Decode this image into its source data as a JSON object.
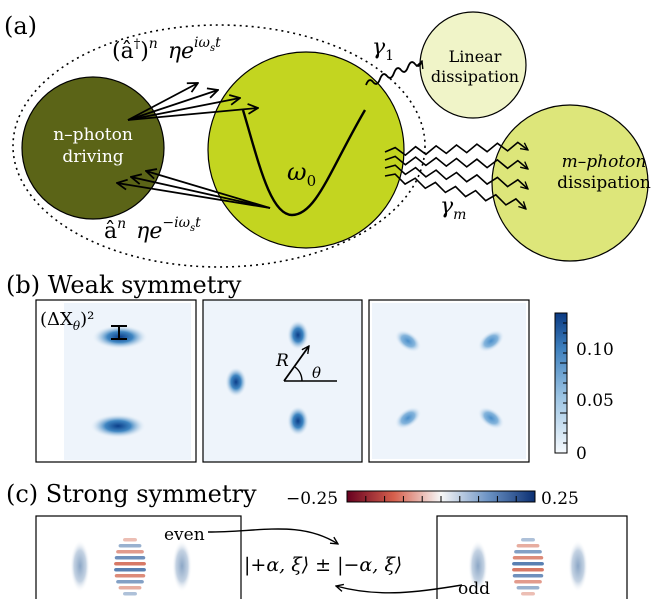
{
  "panel_a": {
    "label": "(a)",
    "creation_op": "(â†)ⁿ ηe^{iω_s t}",
    "creation_op_parts": {
      "base": "(â",
      "dagger": "†",
      "close": ")",
      "n": "n",
      "eta": "η",
      "e": "e",
      "exp": "iω",
      "exp_s": "s",
      "exp_t": "t"
    },
    "annihilation_op": "âⁿ ηe^{−iω_s t}",
    "annihilation_op_parts": {
      "base": "â",
      "n": "n",
      "eta": "η",
      "e": "e",
      "exp": "−iω",
      "exp_s": "s",
      "exp_t": "t"
    },
    "driving_line1": "n–photon",
    "driving_line2": "driving",
    "cavity_freq": "ω",
    "cavity_freq_sub": "0",
    "linear_rate": "γ",
    "linear_rate_sub": "1",
    "linear_line1": "Linear",
    "linear_line2": "dissipation",
    "multi_rate": "γ",
    "multi_rate_sub": "m",
    "multi_line1": "m–photon",
    "multi_line2": "dissipation",
    "colors": {
      "driving": "#5b6417",
      "cavity": "#c3d520",
      "linear": "#f0f4c8",
      "multi": "#dde67a"
    }
  },
  "panel_b": {
    "label": "(b) Weak symmetry",
    "variance_label": "(ΔX",
    "variance_sub": "θ",
    "variance_sup": ")²",
    "radius_label": "R",
    "angle_label": "θ",
    "colorbar_ticks": [
      "0.10",
      "0.05",
      "0"
    ],
    "colorbar_range": [
      0,
      0.13
    ]
  },
  "panel_c": {
    "label": "(c) Strong symmetry",
    "colorbar_min": "−0.25",
    "colorbar_max": "0.25",
    "even_label": "even",
    "odd_label": "odd",
    "state_text": "|+α, ξ⟩ ± |−α, ξ⟩"
  }
}
